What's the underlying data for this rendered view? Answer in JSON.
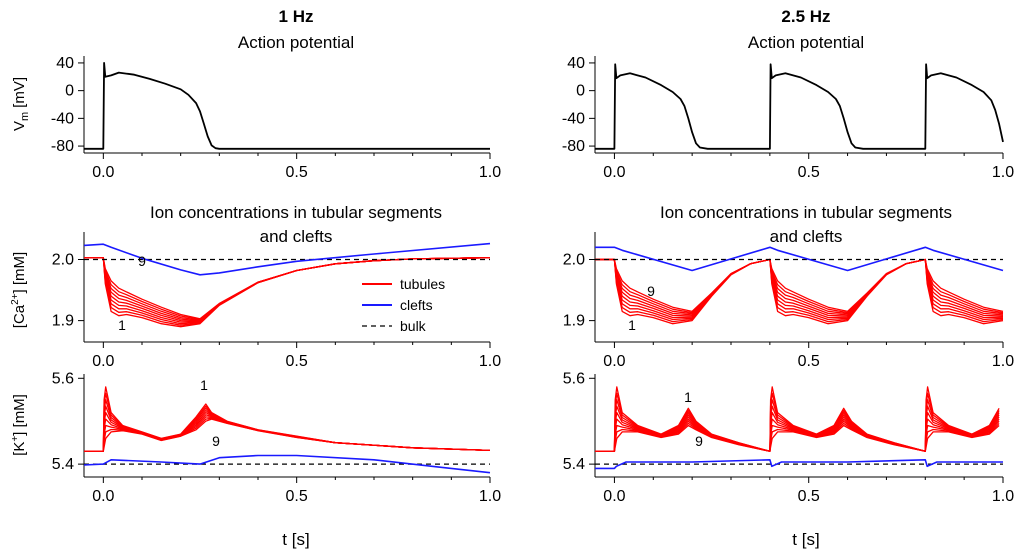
{
  "columns": [
    {
      "freq_label": "1 Hz",
      "ap_title": "Action potential"
    },
    {
      "freq_label": "2.5 Hz",
      "ap_title": "Action potential"
    }
  ],
  "ion_title_line1": "Ion concentrations in tubular segments",
  "ion_title_line2": "and clefts",
  "xlabel": "t [s]",
  "ylabels": {
    "vm_main": "V",
    "vm_sub": "m",
    "vm_unit": "[mV]",
    "ca_pre": "[Ca",
    "ca_sup": "2+",
    "ca_post": "] [mM]",
    "k_pre": "[K",
    "k_sup": "+",
    "k_post": "] [mM]"
  },
  "legend": {
    "tubules": "tubules",
    "clefts": "clefts",
    "bulk": "bulk"
  },
  "colors": {
    "tubules": "#ff0000",
    "clefts": "#1a1aff",
    "bulk": "#000000",
    "ap": "#000000"
  },
  "chart_data": [
    {
      "type": "line",
      "id": "ap_1hz",
      "title": "Action potential",
      "ylabel": "Vm [mV]",
      "xlim": [
        -0.05,
        1.0
      ],
      "ylim": [
        -90,
        50
      ],
      "xticks": [
        0.0,
        0.5,
        1.0
      ],
      "xtick_labels": [
        "0.0",
        "0.5",
        "1.0"
      ],
      "yticks": [
        40,
        0,
        -40,
        -80
      ],
      "ytick_labels": [
        "40",
        "0",
        "-40",
        "-80"
      ],
      "series": [
        {
          "name": "Vm",
          "x": [
            -0.05,
            0,
            0.002,
            0.005,
            0.02,
            0.04,
            0.08,
            0.12,
            0.16,
            0.2,
            0.22,
            0.24,
            0.25,
            0.26,
            0.27,
            0.28,
            0.29,
            0.3,
            0.35,
            1.0
          ],
          "y": [
            -84,
            -84,
            40,
            20,
            22,
            26,
            23,
            17,
            10,
            2,
            -6,
            -18,
            -30,
            -48,
            -66,
            -79,
            -83,
            -84,
            -84,
            -84
          ]
        }
      ]
    },
    {
      "type": "line",
      "id": "ap_25hz",
      "title": "Action potential",
      "ylabel": "Vm [mV]",
      "xlim": [
        -0.05,
        1.0
      ],
      "ylim": [
        -90,
        50
      ],
      "xticks": [
        0.0,
        0.5,
        1.0
      ],
      "xtick_labels": [
        "0.0",
        "0.5",
        "1.0"
      ],
      "yticks": [
        40,
        0,
        -40,
        -80
      ],
      "ytick_labels": [
        "40",
        "0",
        "-40",
        "-80"
      ],
      "series": [
        {
          "name": "Vm",
          "x": [
            -0.05,
            0,
            0.002,
            0.005,
            0.015,
            0.04,
            0.08,
            0.12,
            0.15,
            0.17,
            0.18,
            0.19,
            0.2,
            0.21,
            0.22,
            0.24,
            0.4,
            0.402,
            0.405,
            0.415,
            0.44,
            0.48,
            0.52,
            0.55,
            0.57,
            0.58,
            0.59,
            0.6,
            0.61,
            0.62,
            0.64,
            0.8,
            0.802,
            0.805,
            0.815,
            0.84,
            0.88,
            0.92,
            0.95,
            0.97,
            0.98,
            0.99,
            1.0
          ],
          "y": [
            -84,
            -84,
            38,
            18,
            22,
            25,
            19,
            8,
            -2,
            -12,
            -22,
            -40,
            -60,
            -76,
            -82,
            -84,
            -84,
            38,
            18,
            22,
            25,
            19,
            8,
            -2,
            -12,
            -22,
            -40,
            -60,
            -76,
            -82,
            -84,
            -84,
            38,
            18,
            22,
            25,
            19,
            8,
            -2,
            -14,
            -28,
            -48,
            -74
          ]
        }
      ]
    },
    {
      "type": "line",
      "id": "ca_1hz",
      "ylabel": "[Ca2+] [mM]",
      "xlim": [
        -0.05,
        1.0
      ],
      "ylim": [
        1.865,
        2.045
      ],
      "xticks": [
        0.0,
        0.5,
        1.0
      ],
      "xtick_labels": [
        "0.0",
        "0.5",
        "1.0"
      ],
      "yticks": [
        2.0,
        1.9
      ],
      "ytick_labels": [
        "2.0",
        "1.9"
      ],
      "segment_labels": {
        "first": "1",
        "last": "9"
      },
      "series": [
        {
          "name": "clefts",
          "x": [
            -0.05,
            0,
            0.02,
            0.1,
            0.2,
            0.25,
            0.3,
            0.4,
            0.5,
            0.7,
            1.0
          ],
          "y": [
            2.023,
            2.025,
            2.02,
            2.002,
            1.983,
            1.975,
            1.978,
            1.988,
            1.997,
            2.009,
            2.026
          ]
        },
        {
          "name": "bulk",
          "x": [
            -0.05,
            1.0
          ],
          "y": [
            2.0,
            2.0
          ]
        },
        {
          "name": "tubules seg 1",
          "x": [
            -0.05,
            0,
            0.005,
            0.02,
            0.04,
            0.06,
            0.1,
            0.15,
            0.2,
            0.25,
            0.3,
            0.4,
            0.5,
            0.6,
            0.7,
            0.8,
            1.0
          ],
          "y": [
            2.003,
            2.003,
            1.96,
            1.915,
            1.908,
            1.91,
            1.905,
            1.895,
            1.89,
            1.895,
            1.925,
            1.962,
            1.982,
            1.993,
            1.998,
            2.001,
            2.003
          ]
        },
        {
          "name": "tubules seg 9",
          "x": [
            -0.05,
            0,
            0.005,
            0.02,
            0.04,
            0.06,
            0.1,
            0.15,
            0.2,
            0.25,
            0.3,
            0.4,
            0.5,
            0.6,
            0.7,
            0.8,
            1.0
          ],
          "y": [
            2.003,
            2.003,
            1.985,
            1.965,
            1.953,
            1.947,
            1.935,
            1.922,
            1.91,
            1.903,
            1.928,
            1.963,
            1.982,
            1.993,
            1.998,
            2.001,
            2.003
          ]
        }
      ]
    },
    {
      "type": "line",
      "id": "ca_25hz",
      "ylabel": "[Ca2+] [mM]",
      "xlim": [
        -0.05,
        1.0
      ],
      "ylim": [
        1.865,
        2.045
      ],
      "xticks": [
        0.0,
        0.5,
        1.0
      ],
      "xtick_labels": [
        "0.0",
        "0.5",
        "1.0"
      ],
      "yticks": [
        2.0,
        1.9
      ],
      "ytick_labels": [
        "2.0",
        "1.9"
      ],
      "segment_labels": {
        "first": "1",
        "last": "9"
      },
      "period": 0.4,
      "series": [
        {
          "name": "clefts (per cycle)",
          "x": [
            0,
            0.02,
            0.2,
            0.4
          ],
          "y": [
            2.02,
            2.015,
            1.982,
            2.02
          ]
        },
        {
          "name": "bulk",
          "x": [
            -0.05,
            1.0
          ],
          "y": [
            2.0,
            2.0
          ]
        },
        {
          "name": "tubules seg 1 (per cycle)",
          "x": [
            0,
            0.005,
            0.02,
            0.04,
            0.06,
            0.1,
            0.15,
            0.2,
            0.25,
            0.3,
            0.35,
            0.4
          ],
          "y": [
            2.0,
            1.96,
            1.915,
            1.908,
            1.91,
            1.905,
            1.895,
            1.9,
            1.94,
            1.975,
            1.993,
            2.0
          ]
        },
        {
          "name": "tubules seg 9 (per cycle)",
          "x": [
            0,
            0.005,
            0.02,
            0.04,
            0.06,
            0.1,
            0.15,
            0.2,
            0.25,
            0.3,
            0.35,
            0.4
          ],
          "y": [
            2.0,
            1.985,
            1.965,
            1.953,
            1.947,
            1.935,
            1.922,
            1.915,
            1.945,
            1.977,
            1.993,
            2.0
          ]
        }
      ]
    },
    {
      "type": "line",
      "id": "k_1hz",
      "ylabel": "[K+] [mM]",
      "xlim": [
        -0.05,
        1.0
      ],
      "ylim": [
        5.37,
        5.61
      ],
      "xticks": [
        0.0,
        0.5,
        1.0
      ],
      "xtick_labels": [
        "0.0",
        "0.5",
        "1.0"
      ],
      "yticks": [
        5.6,
        5.4
      ],
      "ytick_labels": [
        "5.6",
        "5.4"
      ],
      "segment_labels": {
        "first": "1",
        "last": "9"
      },
      "series": [
        {
          "name": "clefts",
          "x": [
            -0.05,
            0,
            0.02,
            0.15,
            0.25,
            0.3,
            0.4,
            0.5,
            0.7,
            0.85,
            1.0
          ],
          "y": [
            5.398,
            5.4,
            5.41,
            5.405,
            5.4,
            5.415,
            5.42,
            5.42,
            5.41,
            5.395,
            5.38
          ]
        },
        {
          "name": "bulk",
          "x": [
            -0.05,
            1.0
          ],
          "y": [
            5.4,
            5.4
          ]
        },
        {
          "name": "tubules seg 1",
          "x": [
            -0.05,
            0,
            0.002,
            0.006,
            0.02,
            0.05,
            0.1,
            0.15,
            0.2,
            0.24,
            0.265,
            0.28,
            0.32,
            0.4,
            0.5,
            0.6,
            0.8,
            1.0
          ],
          "y": [
            5.43,
            5.43,
            5.55,
            5.58,
            5.52,
            5.49,
            5.475,
            5.46,
            5.47,
            5.51,
            5.54,
            5.52,
            5.5,
            5.48,
            5.465,
            5.45,
            5.438,
            5.432
          ]
        },
        {
          "name": "tubules seg 9",
          "x": [
            -0.05,
            0,
            0.002,
            0.006,
            0.02,
            0.05,
            0.1,
            0.15,
            0.2,
            0.24,
            0.265,
            0.28,
            0.32,
            0.4,
            0.5,
            0.6,
            0.8,
            1.0
          ],
          "y": [
            5.43,
            5.43,
            5.44,
            5.46,
            5.475,
            5.478,
            5.47,
            5.455,
            5.465,
            5.48,
            5.5,
            5.505,
            5.495,
            5.478,
            5.462,
            5.45,
            5.438,
            5.432
          ]
        }
      ]
    },
    {
      "type": "line",
      "id": "k_25hz",
      "ylabel": "[K+] [mM]",
      "xlim": [
        -0.05,
        1.0
      ],
      "ylim": [
        5.37,
        5.61
      ],
      "xticks": [
        0.0,
        0.5,
        1.0
      ],
      "xtick_labels": [
        "0.0",
        "0.5",
        "1.0"
      ],
      "yticks": [
        5.6,
        5.4
      ],
      "ytick_labels": [
        "5.6",
        "5.4"
      ],
      "segment_labels": {
        "first": "1",
        "last": "9"
      },
      "period": 0.4,
      "series": [
        {
          "name": "clefts (per cycle)",
          "x": [
            0,
            0.005,
            0.03,
            0.2,
            0.4
          ],
          "y": [
            5.39,
            5.395,
            5.405,
            5.405,
            5.41
          ]
        },
        {
          "name": "bulk",
          "x": [
            -0.05,
            1.0
          ],
          "y": [
            5.4,
            5.4
          ]
        },
        {
          "name": "tubules seg 1 (per cycle)",
          "x": [
            0,
            0.002,
            0.006,
            0.02,
            0.06,
            0.12,
            0.165,
            0.19,
            0.21,
            0.25,
            0.32,
            0.4
          ],
          "y": [
            5.43,
            5.55,
            5.58,
            5.52,
            5.49,
            5.47,
            5.49,
            5.53,
            5.5,
            5.47,
            5.45,
            5.43
          ]
        },
        {
          "name": "tubules seg 9 (per cycle)",
          "x": [
            0,
            0.002,
            0.006,
            0.02,
            0.06,
            0.12,
            0.165,
            0.19,
            0.21,
            0.25,
            0.32,
            0.4
          ],
          "y": [
            5.43,
            5.44,
            5.46,
            5.475,
            5.475,
            5.462,
            5.47,
            5.49,
            5.48,
            5.462,
            5.445,
            5.43
          ]
        }
      ]
    }
  ]
}
